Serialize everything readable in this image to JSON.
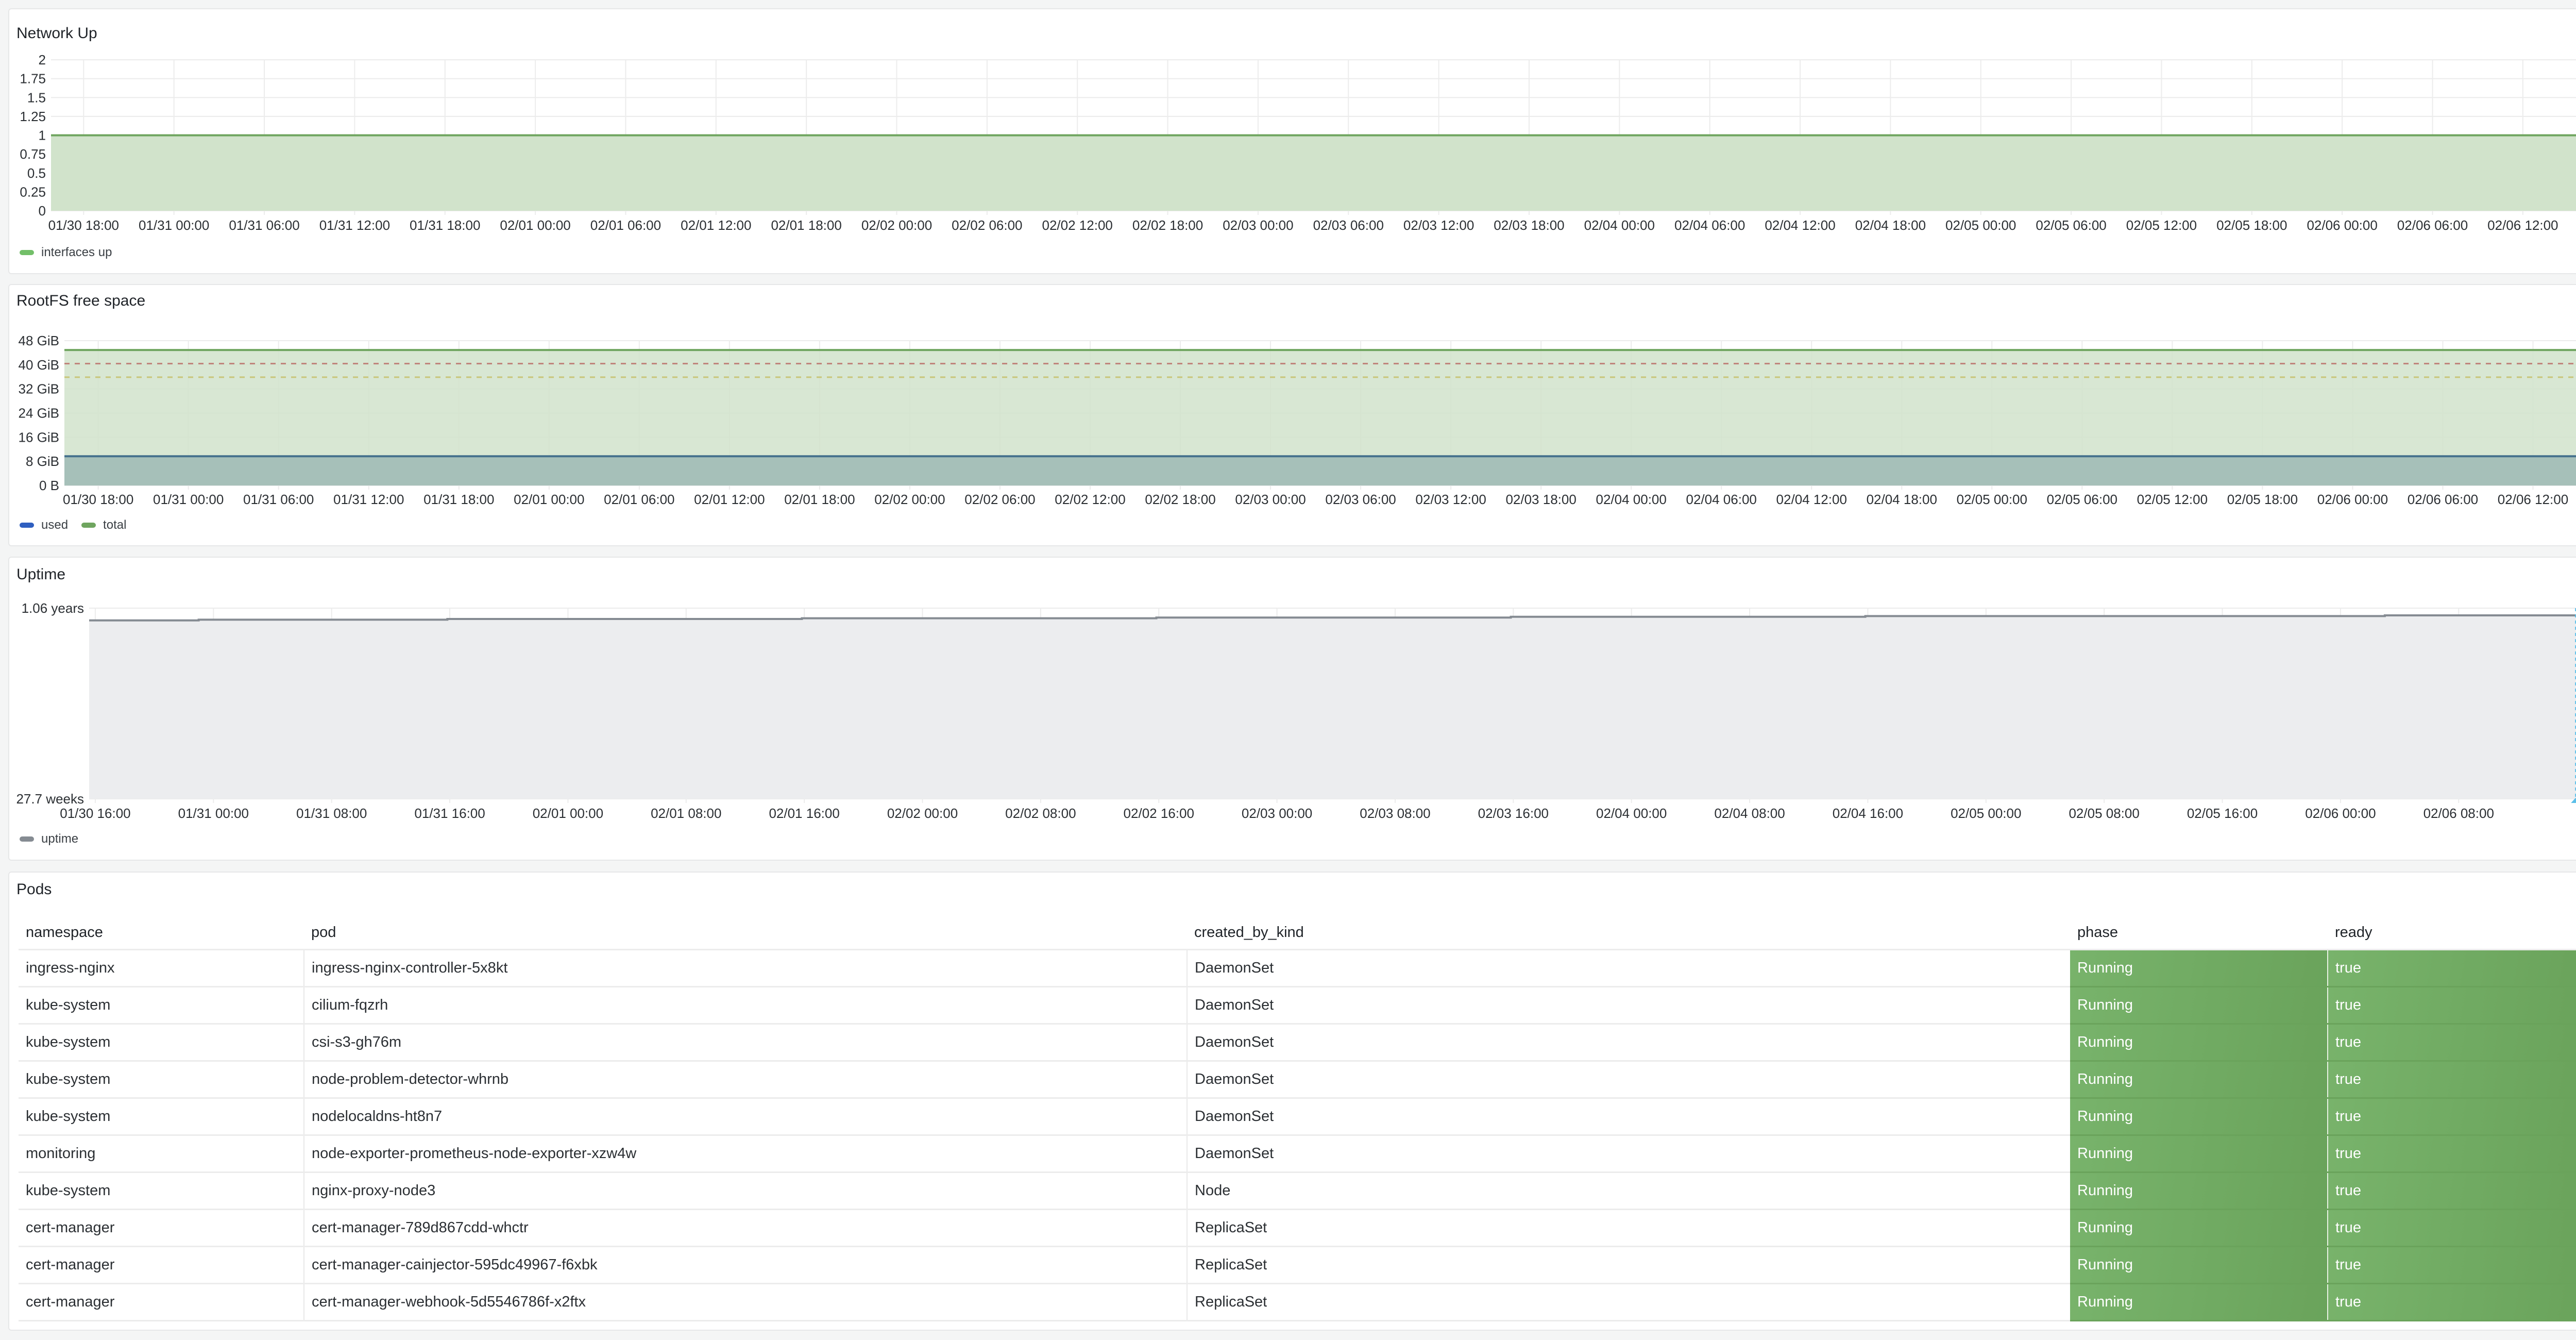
{
  "panels": {
    "network_up": {
      "title": "Network Up"
    },
    "rootfs": {
      "title": "RootFS free space"
    },
    "uptime": {
      "title": "Uptime"
    },
    "pods": {
      "title": "Pods"
    }
  },
  "chart_data": [
    {
      "type": "area",
      "title": "Network Up",
      "xlim": [
        "01/30 15:50",
        "02/06 15:40"
      ],
      "ylim": [
        0,
        2
      ],
      "y_ticks": [
        {
          "value": 0,
          "label": "0"
        },
        {
          "value": 0.25,
          "label": "0.25"
        },
        {
          "value": 0.5,
          "label": "0.5"
        },
        {
          "value": 0.75,
          "label": "0.75"
        },
        {
          "value": 1,
          "label": "1"
        },
        {
          "value": 1.25,
          "label": "1.25"
        },
        {
          "value": 1.5,
          "label": "1.5"
        },
        {
          "value": 1.75,
          "label": "1.75"
        },
        {
          "value": 2,
          "label": "2"
        }
      ],
      "x_ticks": [
        "01/30 18:00",
        "01/31 00:00",
        "01/31 06:00",
        "01/31 12:00",
        "01/31 18:00",
        "02/01 00:00",
        "02/01 06:00",
        "02/01 12:00",
        "02/01 18:00",
        "02/02 00:00",
        "02/02 06:00",
        "02/02 12:00",
        "02/02 18:00",
        "02/03 00:00",
        "02/03 06:00",
        "02/03 12:00",
        "02/03 18:00",
        "02/04 00:00",
        "02/04 06:00",
        "02/04 12:00",
        "02/04 18:00",
        "02/05 00:00",
        "02/05 06:00",
        "02/05 12:00",
        "02/05 18:00",
        "02/06 00:00",
        "02/06 06:00",
        "02/06 12:00"
      ],
      "grid": true,
      "legend_placement": "bottom-left",
      "series": [
        {
          "name": "interfaces up",
          "color": "#6fa55f",
          "legend_color": "#73bf69",
          "fill": "#d1e3cb",
          "points": [
            [
              "01/30 15:50",
              1
            ],
            [
              "02/06 15:40",
              1
            ]
          ]
        }
      ]
    },
    {
      "type": "area",
      "title": "RootFS free space",
      "xlim": [
        "01/30 15:45",
        "02/06 15:00"
      ],
      "ylim": [
        0,
        48
      ],
      "y_unit": "GiB",
      "y_ticks": [
        {
          "value": 0,
          "label": "0 B"
        },
        {
          "value": 8,
          "label": "8 GiB"
        },
        {
          "value": 16,
          "label": "16 GiB"
        },
        {
          "value": 24,
          "label": "24 GiB"
        },
        {
          "value": 32,
          "label": "32 GiB"
        },
        {
          "value": 40,
          "label": "40 GiB"
        },
        {
          "value": 48,
          "label": "48 GiB"
        }
      ],
      "x_ticks": [
        "01/30 18:00",
        "01/31 00:00",
        "01/31 06:00",
        "01/31 12:00",
        "01/31 18:00",
        "02/01 00:00",
        "02/01 06:00",
        "02/01 12:00",
        "02/01 18:00",
        "02/02 00:00",
        "02/02 06:00",
        "02/02 12:00",
        "02/02 18:00",
        "02/03 00:00",
        "02/03 06:00",
        "02/03 12:00",
        "02/03 18:00",
        "02/04 00:00",
        "02/04 06:00",
        "02/04 12:00",
        "02/04 18:00",
        "02/05 00:00",
        "02/05 06:00",
        "02/05 12:00",
        "02/05 18:00",
        "02/06 00:00",
        "02/06 06:00",
        "02/06 12:00"
      ],
      "grid": true,
      "legend_placement": "bottom-left",
      "thresholds": [
        {
          "value": 40.4,
          "color": "#c0857c"
        },
        {
          "value": 35.9,
          "color": "#c8c67a"
        }
      ],
      "series": [
        {
          "name": "used",
          "color": "#44708c",
          "legend_color": "#2f5fc0",
          "fill": "#a6c0b9",
          "points": [
            [
              "01/30 15:45",
              9.7
            ],
            [
              "02/06 15:00",
              9.7
            ]
          ]
        },
        {
          "name": "total",
          "color": "#6fa55f",
          "legend_color": "#6fa55f",
          "fill": "#d1e3cb",
          "points": [
            [
              "01/30 15:45",
              44.9
            ],
            [
              "02/06 15:00",
              44.9
            ]
          ]
        }
      ]
    },
    {
      "type": "area",
      "title": "Uptime",
      "xlim": [
        "01/30 15:35",
        "02/06 16:05"
      ],
      "ylim": [
        0.531,
        1.06
      ],
      "y_unit": "years",
      "y_ticks": [
        {
          "value": 0.531,
          "label": "27.7 weeks"
        },
        {
          "value": 1.06,
          "label": "1.06 years"
        }
      ],
      "x_ticks": [
        "01/30 16:00",
        "01/31 00:00",
        "01/31 08:00",
        "01/31 16:00",
        "02/01 00:00",
        "02/01 08:00",
        "02/01 16:00",
        "02/02 00:00",
        "02/02 08:00",
        "02/02 16:00",
        "02/03 00:00",
        "02/03 08:00",
        "02/03 16:00",
        "02/04 00:00",
        "02/04 08:00",
        "02/04 16:00",
        "02/05 00:00",
        "02/05 08:00",
        "02/05 16:00",
        "02/06 00:00",
        "02/06 08:00"
      ],
      "grid": true,
      "legend_placement": "bottom-left",
      "cursor": "02/06 15:55",
      "series": [
        {
          "name": "uptime",
          "color": "#858b92",
          "legend_color": "#858b92",
          "fill": "#ecedef",
          "step": true,
          "points": [
            [
              "01/30 15:35",
              1.026
            ],
            [
              "01/30 23:00",
              1.028
            ],
            [
              "01/31 15:50",
              1.03
            ],
            [
              "02/01 15:50",
              1.032
            ],
            [
              "02/02 15:50",
              1.034
            ],
            [
              "02/03 15:50",
              1.036
            ],
            [
              "02/04 15:50",
              1.038
            ],
            [
              "02/06 03:00",
              1.04
            ],
            [
              "02/06 16:00",
              1.04
            ]
          ]
        }
      ]
    }
  ],
  "pods_table": {
    "columns": [
      "namespace",
      "pod",
      "created_by_kind",
      "phase",
      "ready"
    ],
    "status_color": "#73b36a",
    "rows": [
      [
        "ingress-nginx",
        "ingress-nginx-controller-5x8kt",
        "DaemonSet",
        "Running",
        "true"
      ],
      [
        "kube-system",
        "cilium-fqzrh",
        "DaemonSet",
        "Running",
        "true"
      ],
      [
        "kube-system",
        "csi-s3-gh76m",
        "DaemonSet",
        "Running",
        "true"
      ],
      [
        "kube-system",
        "node-problem-detector-whrnb",
        "DaemonSet",
        "Running",
        "true"
      ],
      [
        "kube-system",
        "nodelocaldns-ht8n7",
        "DaemonSet",
        "Running",
        "true"
      ],
      [
        "monitoring",
        "node-exporter-prometheus-node-exporter-xzw4w",
        "DaemonSet",
        "Running",
        "true"
      ],
      [
        "kube-system",
        "nginx-proxy-node3",
        "Node",
        "Running",
        "true"
      ],
      [
        "cert-manager",
        "cert-manager-789d867cdd-whctr",
        "ReplicaSet",
        "Running",
        "true"
      ],
      [
        "cert-manager",
        "cert-manager-cainjector-595dc49967-f6xbk",
        "ReplicaSet",
        "Running",
        "true"
      ],
      [
        "cert-manager",
        "cert-manager-webhook-5d5546786f-x2ftx",
        "ReplicaSet",
        "Running",
        "true"
      ]
    ]
  }
}
